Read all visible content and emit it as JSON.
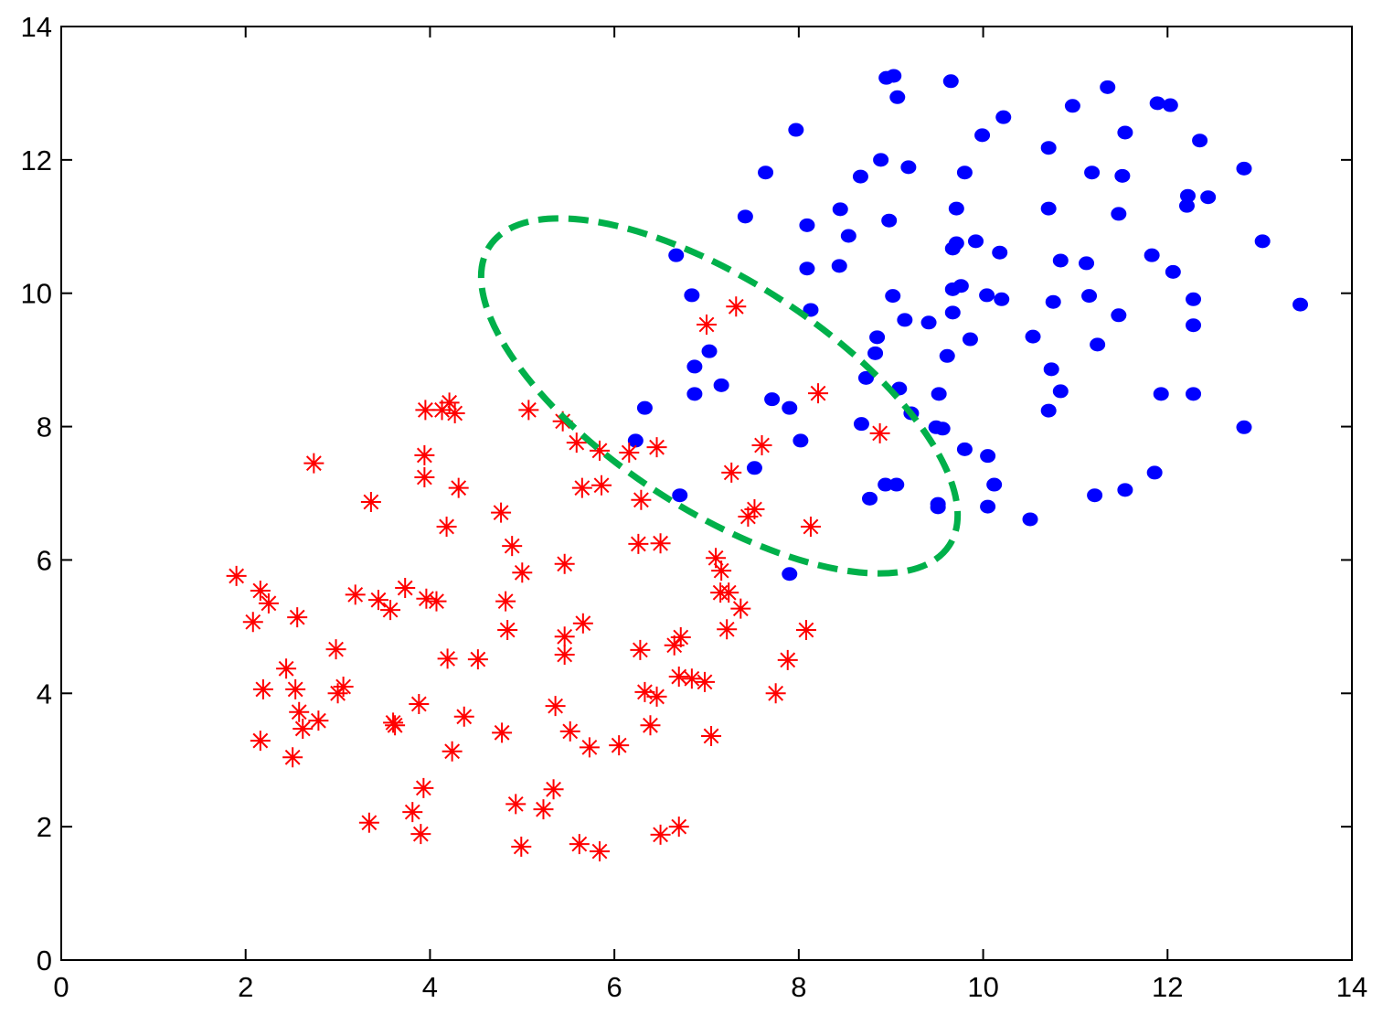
{
  "chart_data": {
    "type": "scatter",
    "xlim": [
      0,
      14
    ],
    "ylim": [
      0,
      14
    ],
    "xticks": [
      0,
      2,
      4,
      6,
      8,
      10,
      12,
      14
    ],
    "yticks": [
      0,
      2,
      4,
      6,
      8,
      10,
      12,
      14
    ],
    "grid": false,
    "series": [
      {
        "marker": "circle",
        "color": "#0000ff",
        "x": [
          8.95,
          9.03,
          9.07,
          9.65,
          11.35,
          10.97,
          11.89,
          12.03,
          10.22,
          7.97,
          9.99,
          11.54,
          12.35,
          10.71,
          8.89,
          9.19,
          7.64,
          8.67,
          9.8,
          11.18,
          11.51,
          12.83,
          12.22,
          12.44,
          12.21,
          7.42,
          8.45,
          9.71,
          10.71,
          11.47,
          8.98,
          8.09,
          8.54,
          9.71,
          9.92,
          9.67,
          13.03,
          6.67,
          10.18,
          11.83,
          10.84,
          11.12,
          8.44,
          8.09,
          12.06,
          6.84,
          9.02,
          9.76,
          9.67,
          10.04,
          10.2,
          10.76,
          11.15,
          12.28,
          13.44,
          8.13,
          9.67,
          11.47,
          9.15,
          9.41,
          12.28,
          10.54,
          8.85,
          9.86,
          11.24,
          7.03,
          8.83,
          9.61,
          6.87,
          10.74,
          8.73,
          7.16,
          9.09,
          6.87,
          9.52,
          10.84,
          11.93,
          12.28,
          7.71,
          7.9,
          6.33,
          10.71,
          9.22,
          8.68,
          9.49,
          9.56,
          12.83,
          6.23,
          8.02,
          9.8,
          10.05,
          7.52,
          11.86,
          8.94,
          9.06,
          10.12,
          11.21,
          11.54,
          6.71,
          8.77,
          9.51,
          9.51,
          10.05,
          10.51,
          7.9
        ],
        "y": [
          13.23,
          13.26,
          12.94,
          13.18,
          13.09,
          12.81,
          12.85,
          12.82,
          12.64,
          12.45,
          12.37,
          12.41,
          12.29,
          12.18,
          12.0,
          11.89,
          11.81,
          11.75,
          11.81,
          11.81,
          11.76,
          11.87,
          11.46,
          11.44,
          11.31,
          11.15,
          11.26,
          11.27,
          11.27,
          11.19,
          11.09,
          11.02,
          10.86,
          10.75,
          10.78,
          10.67,
          10.78,
          10.57,
          10.61,
          10.57,
          10.49,
          10.45,
          10.41,
          10.37,
          10.32,
          9.97,
          9.96,
          10.11,
          10.06,
          9.97,
          9.91,
          9.87,
          9.96,
          9.91,
          9.83,
          9.75,
          9.71,
          9.67,
          9.6,
          9.56,
          9.52,
          9.35,
          9.34,
          9.31,
          9.23,
          9.13,
          9.1,
          9.06,
          8.9,
          8.86,
          8.73,
          8.62,
          8.57,
          8.49,
          8.49,
          8.53,
          8.49,
          8.49,
          8.41,
          8.28,
          8.28,
          8.24,
          8.2,
          8.04,
          7.99,
          7.97,
          7.99,
          7.79,
          7.79,
          7.66,
          7.56,
          7.38,
          7.31,
          7.13,
          7.13,
          7.13,
          6.97,
          7.05,
          6.97,
          6.92,
          6.84,
          6.79,
          6.8,
          6.61,
          5.79
        ]
      },
      {
        "marker": "asterisk",
        "color": "#ff0000",
        "x": [
          1.9,
          2.08,
          2.16,
          2.25,
          2.19,
          2.16,
          2.44,
          2.54,
          2.56,
          2.51,
          2.58,
          2.62,
          2.79,
          2.74,
          2.98,
          3.0,
          3.06,
          3.19,
          3.36,
          3.34,
          3.44,
          3.57,
          3.6,
          3.62,
          3.73,
          3.81,
          3.88,
          3.9,
          3.93,
          3.94,
          3.94,
          3.95,
          3.96,
          4.07,
          4.13,
          4.21,
          4.27,
          4.18,
          4.19,
          4.24,
          4.31,
          4.37,
          4.52,
          4.77,
          4.82,
          4.84,
          4.78,
          4.89,
          4.93,
          4.99,
          5.0,
          5.07,
          5.23,
          5.34,
          5.36,
          5.44,
          5.46,
          5.46,
          5.46,
          5.52,
          5.62,
          5.59,
          5.66,
          5.65,
          5.73,
          5.84,
          5.86,
          5.84,
          6.05,
          6.16,
          6.26,
          6.28,
          6.29,
          6.33,
          6.39,
          6.46,
          6.46,
          6.5,
          6.5,
          6.65,
          6.7,
          6.72,
          6.7,
          6.84,
          6.98,
          7.0,
          7.05,
          7.1,
          7.16,
          7.15,
          7.22,
          7.24,
          7.27,
          7.32,
          7.37,
          7.45,
          7.52,
          7.6,
          7.75,
          7.88,
          8.08,
          8.13,
          8.21,
          8.88
        ],
        "y": [
          5.76,
          5.07,
          5.54,
          5.35,
          4.06,
          3.29,
          4.37,
          4.06,
          5.14,
          3.04,
          3.72,
          3.47,
          3.59,
          7.45,
          4.66,
          4.0,
          4.1,
          5.48,
          6.87,
          2.06,
          5.4,
          5.25,
          3.56,
          3.52,
          5.58,
          2.22,
          3.84,
          1.89,
          2.58,
          7.57,
          7.24,
          8.25,
          5.42,
          5.38,
          8.25,
          8.36,
          8.2,
          6.5,
          4.52,
          3.13,
          7.08,
          3.65,
          4.51,
          6.71,
          5.38,
          4.95,
          3.41,
          6.21,
          2.34,
          1.7,
          5.81,
          8.25,
          2.26,
          2.56,
          3.81,
          8.08,
          5.94,
          4.85,
          4.58,
          3.43,
          1.74,
          7.76,
          5.05,
          7.08,
          3.19,
          7.64,
          7.12,
          1.63,
          3.22,
          7.61,
          6.24,
          4.65,
          6.9,
          4.02,
          3.52,
          3.95,
          7.69,
          6.25,
          1.88,
          4.72,
          4.25,
          4.84,
          2.0,
          4.22,
          4.17,
          9.53,
          3.36,
          6.03,
          5.84,
          5.51,
          4.96,
          5.51,
          7.31,
          9.8,
          5.27,
          6.65,
          6.76,
          7.72,
          4.0,
          4.5,
          4.95,
          6.5,
          8.5,
          7.9
        ]
      }
    ]
  }
}
